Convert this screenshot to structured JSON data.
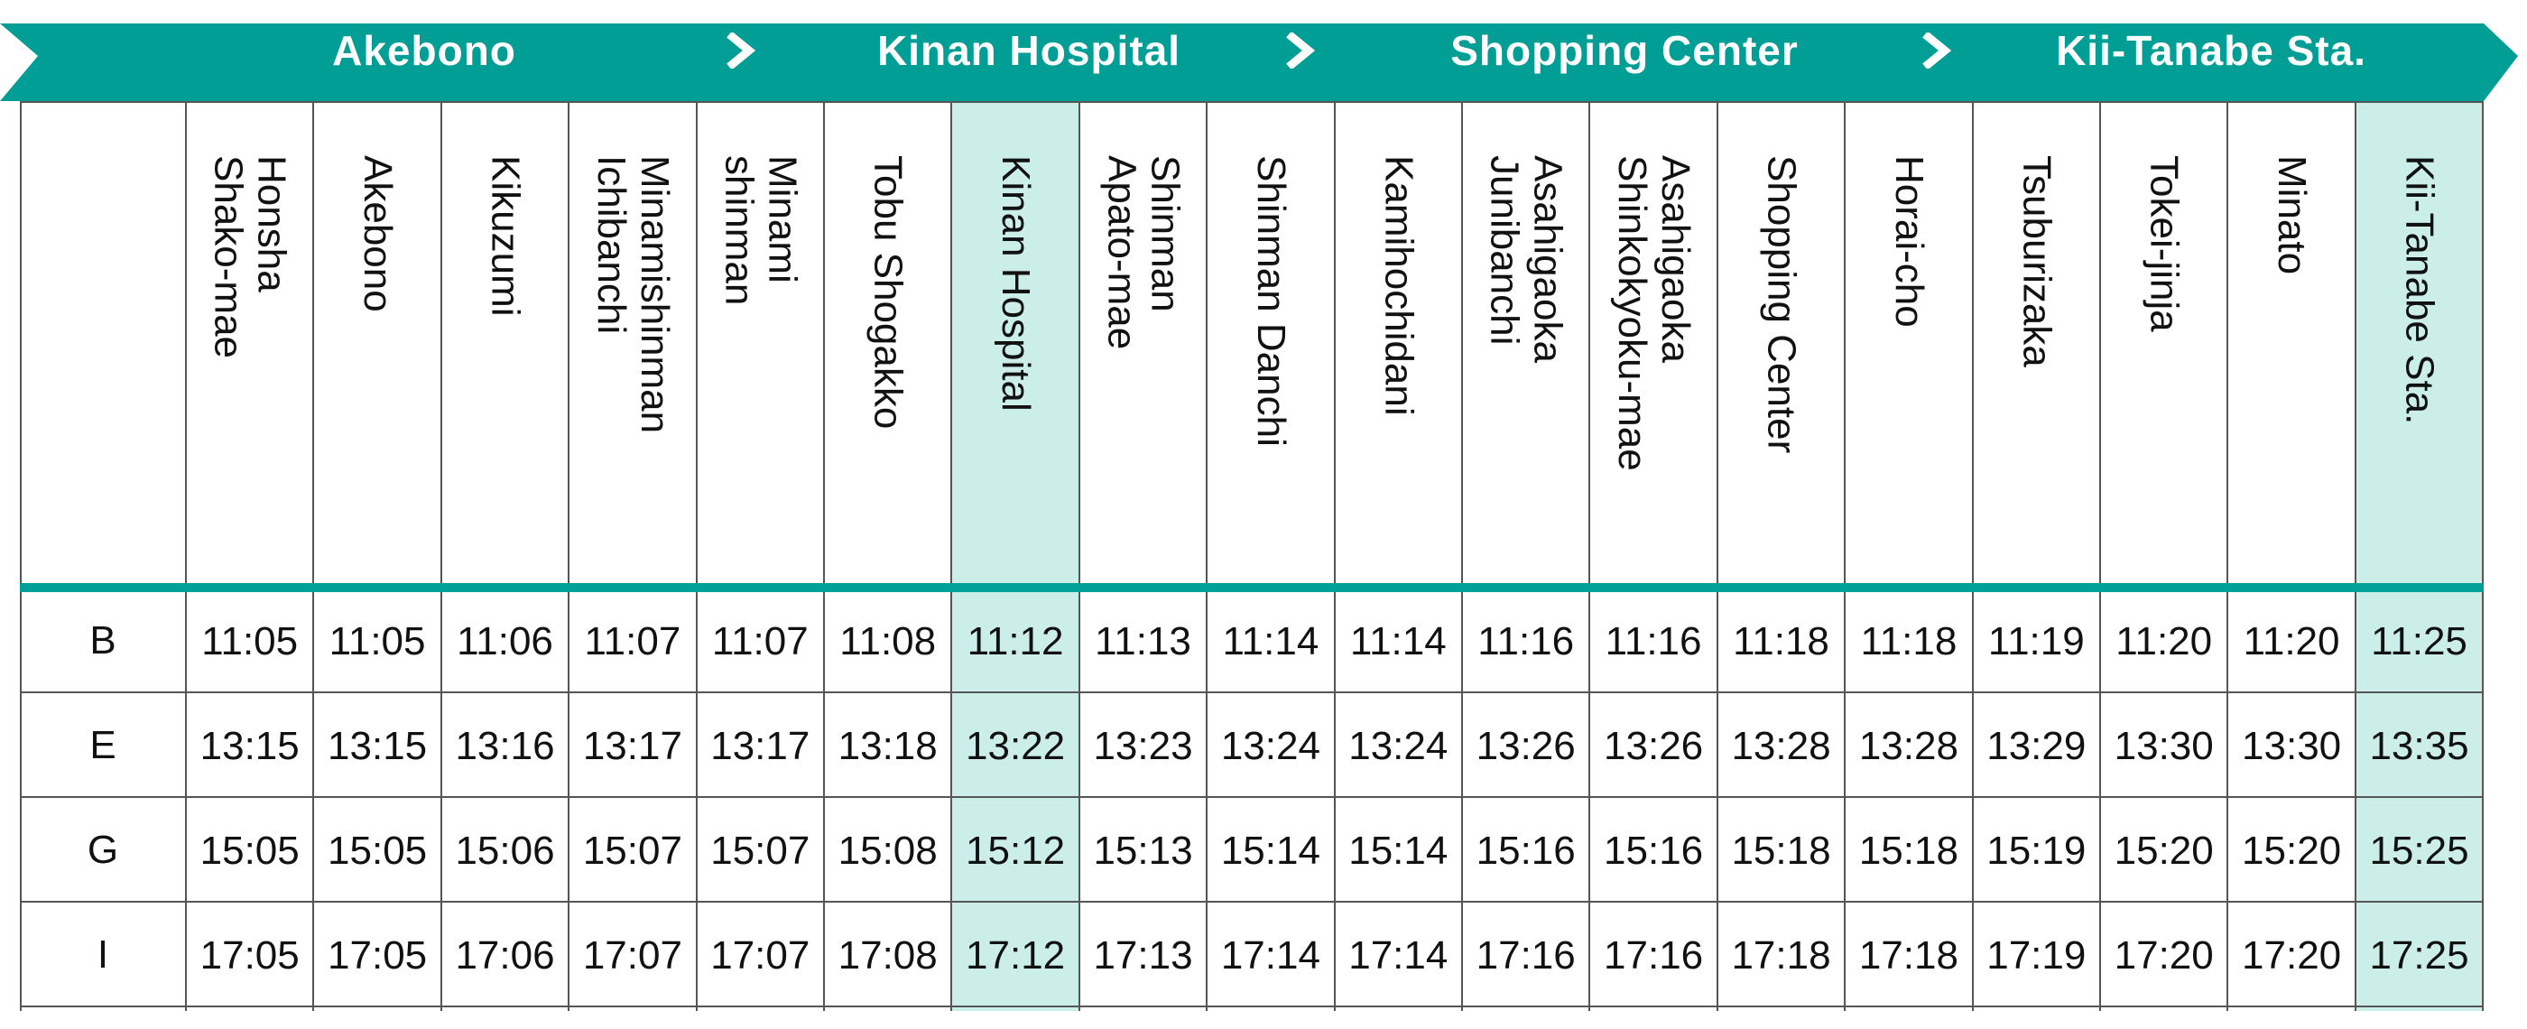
{
  "banner": {
    "color": "#009e94",
    "sections": [
      "Akebono",
      "Kinan Hospital",
      "Shopping Center",
      "Kii-Tanabe Sta."
    ]
  },
  "highlight_color": "#cceee8",
  "stations": [
    "Honsha\nShako-mae",
    "Akebono",
    "Kikuzumi",
    "Minamishinman\nIchibanchi",
    "Minami\nshinman",
    "Tobu Shogakko",
    "Kinan Hospital",
    "Shinman\nApato-mae",
    "Shinman Danchi",
    "Kamihochidani",
    "Asahigaoka\nJunibanchi",
    "Asahigaoka\nShinkokyoku-mae",
    "Shopping Center",
    "Horai-cho",
    "Tsuburizaka",
    "Tokei-jinja",
    "Minato",
    "Kii-Tanabe Sta."
  ],
  "highlighted_columns": [
    6,
    17
  ],
  "rows": [
    {
      "label": "B",
      "times": [
        "11:05",
        "11:05",
        "11:06",
        "11:07",
        "11:07",
        "11:08",
        "11:12",
        "11:13",
        "11:14",
        "11:14",
        "11:16",
        "11:16",
        "11:18",
        "11:18",
        "11:19",
        "11:20",
        "11:20",
        "11:25"
      ]
    },
    {
      "label": "E",
      "times": [
        "13:15",
        "13:15",
        "13:16",
        "13:17",
        "13:17",
        "13:18",
        "13:22",
        "13:23",
        "13:24",
        "13:24",
        "13:26",
        "13:26",
        "13:28",
        "13:28",
        "13:29",
        "13:30",
        "13:30",
        "13:35"
      ]
    },
    {
      "label": "G",
      "times": [
        "15:05",
        "15:05",
        "15:06",
        "15:07",
        "15:07",
        "15:08",
        "15:12",
        "15:13",
        "15:14",
        "15:14",
        "15:16",
        "15:16",
        "15:18",
        "15:18",
        "15:19",
        "15:20",
        "15:20",
        "15:25"
      ]
    },
    {
      "label": "I",
      "times": [
        "17:05",
        "17:05",
        "17:06",
        "17:07",
        "17:07",
        "17:08",
        "17:12",
        "17:13",
        "17:14",
        "17:14",
        "17:16",
        "17:16",
        "17:18",
        "17:18",
        "17:19",
        "17:20",
        "17:20",
        "17:25"
      ]
    }
  ]
}
